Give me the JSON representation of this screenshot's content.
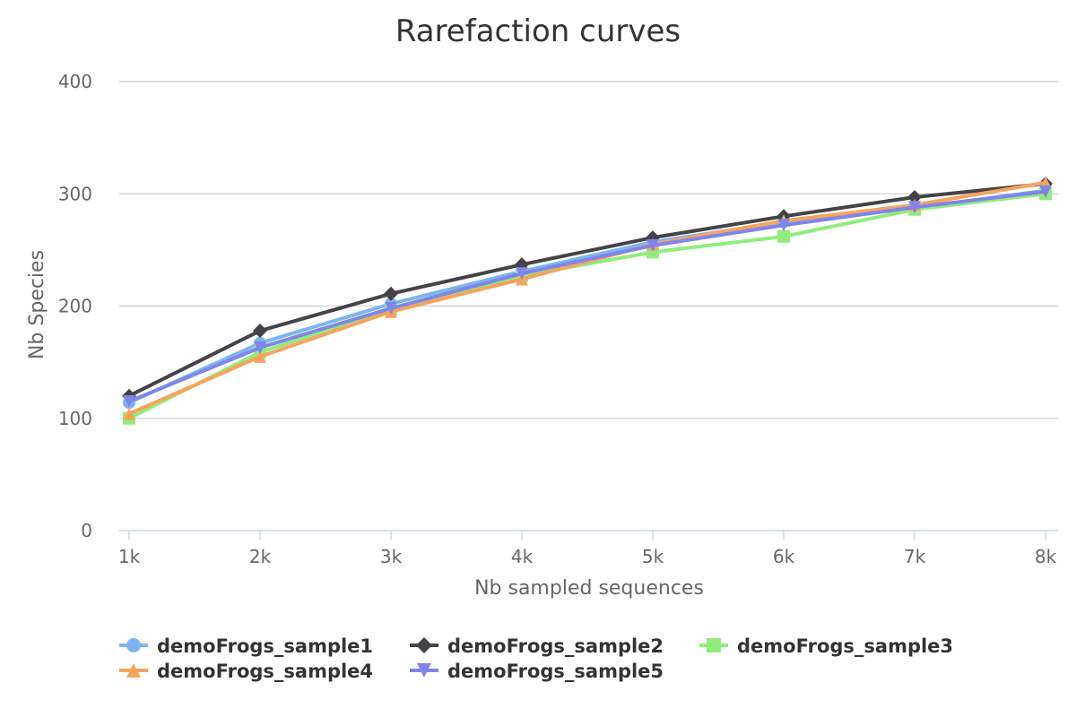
{
  "chart_data": {
    "type": "line",
    "title": "Rarefaction curves",
    "xlabel": "Nb sampled sequences",
    "ylabel": "Nb Species",
    "x": [
      1000,
      2000,
      3000,
      4000,
      5000,
      6000,
      7000,
      8000
    ],
    "x_tick_labels": [
      "1k",
      "2k",
      "3k",
      "4k",
      "5k",
      "6k",
      "7k",
      "8k"
    ],
    "y_ticks": [
      0,
      100,
      200,
      300,
      400
    ],
    "xlim": [
      1000,
      8000
    ],
    "ylim": [
      0,
      400
    ],
    "grid": "horizontal",
    "legend_position": "bottom",
    "series": [
      {
        "name": "demoFrogs_sample1",
        "color": "#7cb5ec",
        "marker": "circle",
        "values": [
          114,
          167,
          202,
          231,
          257,
          275,
          287,
          303
        ]
      },
      {
        "name": "demoFrogs_sample2",
        "color": "#434348",
        "marker": "diamond",
        "values": [
          120,
          178,
          211,
          237,
          261,
          280,
          297,
          309
        ]
      },
      {
        "name": "demoFrogs_sample3",
        "color": "#90ed7d",
        "marker": "square",
        "values": [
          100,
          159,
          197,
          227,
          248,
          262,
          286,
          300
        ]
      },
      {
        "name": "demoFrogs_sample4",
        "color": "#f7a35c",
        "marker": "triangle",
        "values": [
          104,
          155,
          195,
          224,
          255,
          276,
          290,
          310
        ]
      },
      {
        "name": "demoFrogs_sample5",
        "color": "#8085e9",
        "marker": "triangle-down",
        "values": [
          115,
          163,
          198,
          229,
          254,
          272,
          288,
          302
        ]
      }
    ]
  }
}
